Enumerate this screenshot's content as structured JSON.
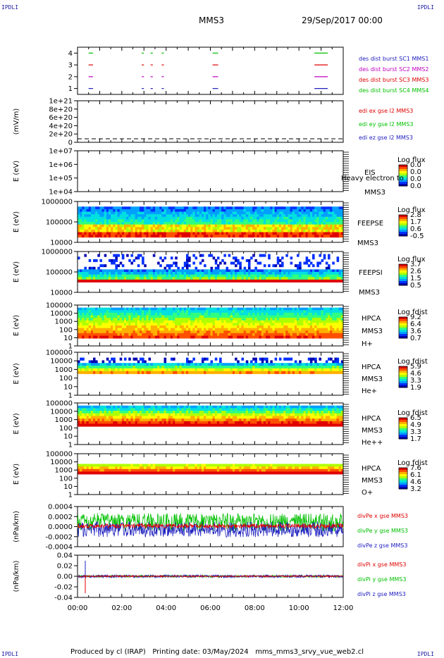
{
  "corner_labels": {
    "top_left": "IPDLI",
    "top_right": "IPDLI",
    "bottom_left": "IPDLI",
    "bottom_right": "IPDLI"
  },
  "header": {
    "spacecraft": "MMS3",
    "date": "29/Sep/2017 00:00"
  },
  "footer": {
    "text": "Produced by cl (IRAP)   Printing date: 03/May/2024   mms_mms3_srvy_vue_web2.cl"
  },
  "chart_data": [
    {
      "type": "scatter",
      "ylim": [
        0.5,
        4.5
      ],
      "yticks": [
        "1",
        "2",
        "3",
        "4"
      ],
      "series": [
        {
          "name": "des dist burst SC1 MMS1",
          "color": "#2020c0",
          "level": 1,
          "intervals": [
            [
              0.5,
              0.7
            ],
            [
              2.9,
              3.0
            ],
            [
              3.3,
              3.4
            ],
            [
              3.8,
              3.9
            ],
            [
              6.1,
              6.35
            ],
            [
              10.7,
              11.3
            ]
          ]
        },
        {
          "name": "des dist burst SC2 MMS2",
          "color": "#c000c0",
          "level": 2,
          "intervals": [
            [
              0.5,
              0.7
            ],
            [
              2.9,
              3.0
            ],
            [
              3.3,
              3.4
            ],
            [
              3.8,
              3.9
            ],
            [
              6.1,
              6.35
            ],
            [
              10.7,
              11.3
            ]
          ]
        },
        {
          "name": "des dist burst SC3 MMS3",
          "color": "#e00000",
          "level": 3,
          "intervals": [
            [
              0.5,
              0.7
            ],
            [
              2.9,
              3.0
            ],
            [
              3.3,
              3.4
            ],
            [
              3.8,
              3.9
            ],
            [
              6.1,
              6.35
            ],
            [
              10.7,
              11.3
            ]
          ]
        },
        {
          "name": "des dist burst SC4 MMS4",
          "color": "#00c000",
          "level": 4,
          "intervals": [
            [
              0.5,
              0.7
            ],
            [
              2.9,
              3.0
            ],
            [
              3.3,
              3.4
            ],
            [
              3.8,
              3.9
            ],
            [
              6.1,
              6.35
            ],
            [
              10.7,
              11.3
            ]
          ]
        }
      ]
    },
    {
      "type": "line",
      "ylabel": "(mV/m)",
      "yticks": [
        "1e+21",
        "8e+20",
        "6e+20",
        "4e+20",
        "2e+20",
        "0"
      ],
      "series": [
        {
          "name": "edi ex gse l2 MMS3",
          "color": "#e00000"
        },
        {
          "name": "edi ey gse l2 MMS3",
          "color": "#00c000"
        },
        {
          "name": "edi ez gse l2 MMS3",
          "color": "#2020c0"
        }
      ]
    },
    {
      "type": "heatmap",
      "ylabel": "E (eV)",
      "yticks": [
        "1e+07",
        "1e+06",
        "1e+05",
        "1e+04"
      ],
      "labels": [
        "EIS",
        "MMS3"
      ],
      "colorbar_title": "Log flux",
      "colorbar_ticks": [
        "0.0",
        "0.0",
        "0.0",
        "0.0"
      ],
      "overlay": "Heavy electron to"
    },
    {
      "type": "heatmap",
      "ylabel": "E (eV)",
      "yticks": [
        "1000000",
        "100000",
        "10000"
      ],
      "labels": [
        "FEEPSE",
        "MMS3"
      ],
      "colorbar_title": "Log flux",
      "colorbar_ticks": [
        "2.8",
        "1.7",
        "0.6",
        "-0.5"
      ]
    },
    {
      "type": "heatmap",
      "ylabel": "E (eV)",
      "yticks": [
        "1000000",
        "100000",
        "10000"
      ],
      "labels": [
        "FEEPSI",
        "MMS3"
      ],
      "colorbar_title": "Log flux",
      "colorbar_ticks": [
        "3.7",
        "2.6",
        "1.5",
        "0.5"
      ]
    },
    {
      "type": "heatmap",
      "ylabel": "E (eV)",
      "yticks": [
        "100000",
        "10000",
        "1000",
        "100",
        "10",
        "1"
      ],
      "labels": [
        "HPCA",
        "MMS3",
        "H+"
      ],
      "colorbar_title": "Log fdist",
      "colorbar_ticks": [
        "9.2",
        "6.4",
        "3.6",
        "0.7"
      ]
    },
    {
      "type": "heatmap",
      "ylabel": "E (eV)",
      "yticks": [
        "100000",
        "10000",
        "1000",
        "100",
        "10",
        "1"
      ],
      "labels": [
        "HPCA",
        "MMS3",
        "He+"
      ],
      "colorbar_title": "Log fdist",
      "colorbar_ticks": [
        "5.9",
        "4.6",
        "3.3",
        "1.9"
      ]
    },
    {
      "type": "heatmap",
      "ylabel": "E (eV)",
      "yticks": [
        "100000",
        "10000",
        "1000",
        "100",
        "10",
        "1"
      ],
      "labels": [
        "HPCA",
        "MMS3",
        "He++"
      ],
      "colorbar_title": "Log fdist",
      "colorbar_ticks": [
        "6.5",
        "4.9",
        "3.3",
        "1.7"
      ]
    },
    {
      "type": "heatmap",
      "ylabel": "E (eV)",
      "yticks": [
        "100000",
        "10000",
        "1000",
        "100",
        "10",
        "1"
      ],
      "labels": [
        "HPCA",
        "MMS3",
        "O+"
      ],
      "colorbar_title": "Log fdist",
      "colorbar_ticks": [
        "7.6",
        "6.1",
        "4.6",
        "3.2"
      ]
    },
    {
      "type": "line",
      "ylabel": "(nPa/km)",
      "ylim": [
        -0.0005,
        0.0005
      ],
      "yticks": [
        "0.0004",
        "0.0002",
        "0.0000",
        "-0.0002",
        "-0.0004"
      ],
      "series": [
        {
          "name": "divPe x gse MMS3",
          "color": "#e00000"
        },
        {
          "name": "divPe y gse MMS3",
          "color": "#00c000"
        },
        {
          "name": "divPe z gse MMS3",
          "color": "#2020c0"
        }
      ]
    },
    {
      "type": "line",
      "ylabel": "(nPa/km)",
      "ylim": [
        -0.05,
        0.05
      ],
      "yticks": [
        "0.04",
        "0.02",
        "0.00",
        "-0.02",
        "-0.04"
      ],
      "series": [
        {
          "name": "divPi x gse MMS3",
          "color": "#e00000"
        },
        {
          "name": "divPi y gse MMS3",
          "color": "#00c000"
        },
        {
          "name": "divPi z gse MMS3",
          "color": "#2020c0"
        }
      ]
    }
  ],
  "x_axis": {
    "ticks": [
      "00:00",
      "02:00",
      "04:00",
      "06:00",
      "08:00",
      "10:00",
      "12:00"
    ],
    "range_hours": [
      0,
      12
    ]
  }
}
